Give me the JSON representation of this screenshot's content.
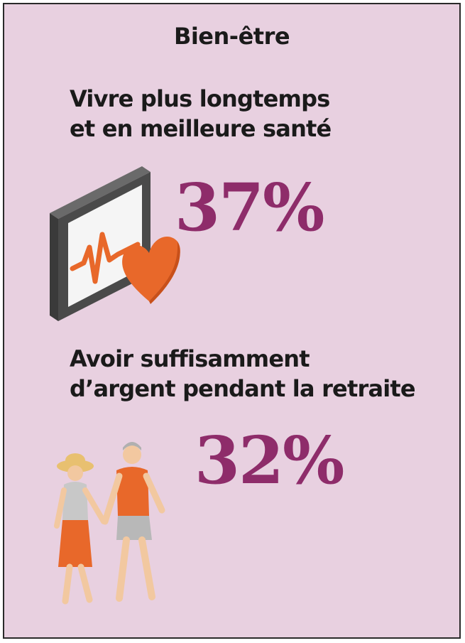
{
  "title": "Bien-être",
  "items": [
    {
      "headline_lines": [
        "Vivre plus longtemps",
        "et en meilleure santé"
      ],
      "value": "37%",
      "icon": "health-monitor-heart-icon"
    },
    {
      "headline_lines": [
        "Avoir suffisamment",
        "d’argent pendant la retraite"
      ],
      "value": "32%",
      "icon": "retired-couple-walking-icon"
    }
  ],
  "colors": {
    "background": "#e8d0e0",
    "accent": "#8e2c6a",
    "icon_orange": "#e8682a",
    "device_gray": "#4a4a4a"
  }
}
